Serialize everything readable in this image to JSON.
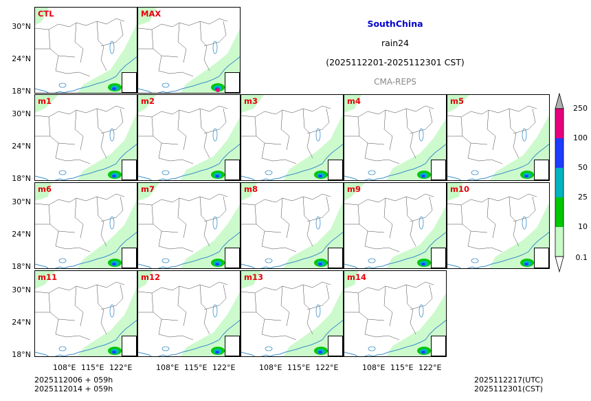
{
  "title": {
    "region": "SouthChina",
    "variable": "rain24",
    "period": "(2025112201-2025112301 CST)",
    "model": "CMA-REPS"
  },
  "panels": [
    "CTL",
    "MAX",
    "m1",
    "m2",
    "m3",
    "m4",
    "m5",
    "m6",
    "m7",
    "m8",
    "m9",
    "m10",
    "m11",
    "m12",
    "m13",
    "m14"
  ],
  "y_ticks": [
    "30°N",
    "24°N",
    "18°N"
  ],
  "x_ticks": [
    "108°E",
    "115°E",
    "122°E"
  ],
  "colorbar": {
    "levels": [
      "250",
      "100",
      "50",
      "25",
      "10",
      "0.1"
    ],
    "colors": [
      "#b0b0b0",
      "#e8007d",
      "#1e3cff",
      "#00b4c0",
      "#00c800",
      "#c8fac8"
    ]
  },
  "footer_left": [
    "2025112006  +  059h",
    "2025112014  +  059h"
  ],
  "footer_right": [
    "2025112217(UTC)",
    "2025112301(CST)"
  ]
}
